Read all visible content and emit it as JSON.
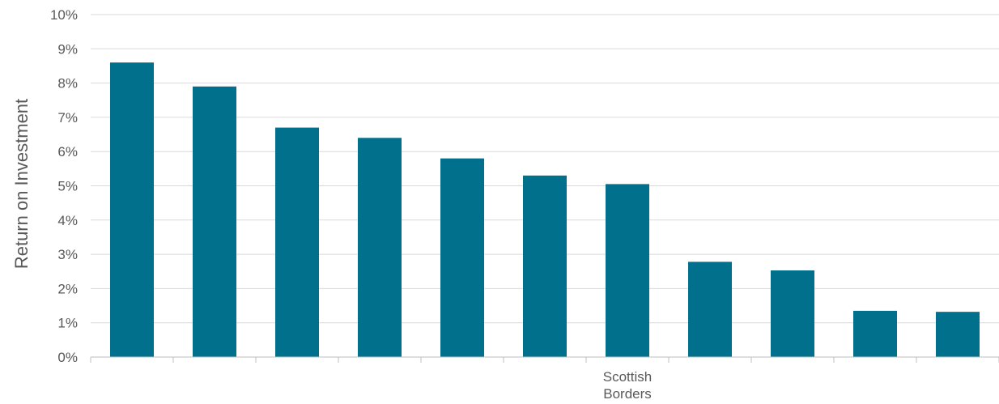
{
  "chart_data": {
    "type": "bar",
    "ylabel": "Return on Investment",
    "ylim": [
      0,
      10
    ],
    "y_tick_step": 1,
    "y_tick_format": "percent",
    "grid": true,
    "legend": "none",
    "categories": [
      "",
      "",
      "",
      "",
      "",
      "",
      "Scottish Borders",
      "",
      "",
      "",
      ""
    ],
    "series": [
      {
        "values": [
          8.6,
          7.9,
          6.7,
          6.4,
          5.8,
          5.3,
          5.05,
          2.78,
          2.53,
          1.35,
          1.32
        ]
      }
    ],
    "colors": {
      "bar": "#00708C",
      "grid": "#D9D9D9",
      "axis": "#BFBFBF",
      "text": "#595959"
    }
  }
}
